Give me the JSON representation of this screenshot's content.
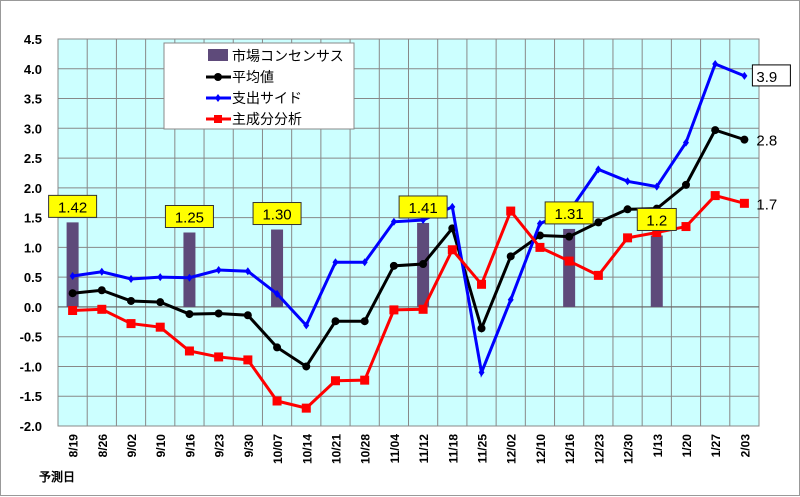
{
  "chart_data": {
    "type": "line",
    "xlabel": "予測日",
    "ylabel": "",
    "ylim": [
      -2.0,
      4.5
    ],
    "yticks": [
      "4.5",
      "4.0",
      "3.5",
      "3.0",
      "2.5",
      "2.0",
      "1.5",
      "1.0",
      "0.5",
      "0.0",
      "-0.5",
      "-1.0",
      "-1.5",
      "-2.0"
    ],
    "grid": true,
    "legend_position": "top-center",
    "categories": [
      "8/19",
      "8/26",
      "9/02",
      "9/10",
      "9/16",
      "9/23",
      "9/30",
      "10/07",
      "10/14",
      "10/21",
      "10/28",
      "11/04",
      "11/12",
      "11/18",
      "11/25",
      "12/02",
      "12/10",
      "12/16",
      "12/23",
      "12/30",
      "1/13",
      "1/20",
      "1/27",
      "2/03"
    ],
    "consensus": {
      "name": "市場コンセンサス",
      "color": "#5e4a7a",
      "points": [
        {
          "category": "8/19",
          "value": 1.42,
          "label": "1.42"
        },
        {
          "category": "9/16",
          "value": 1.25,
          "label": "1.25"
        },
        {
          "category": "10/07",
          "value": 1.3,
          "label": "1.30"
        },
        {
          "category": "11/12",
          "value": 1.41,
          "label": "1.41"
        },
        {
          "category": "12/16",
          "value": 1.31,
          "label": "1.31"
        },
        {
          "category": "1/13",
          "value": 1.2,
          "label": "1.2"
        }
      ]
    },
    "series": [
      {
        "name": "平均値",
        "color": "#000000",
        "marker": "circle",
        "end_label": "2.8",
        "values": [
          0.23,
          0.28,
          0.1,
          0.08,
          -0.12,
          -0.11,
          -0.14,
          -0.68,
          -1.0,
          -0.24,
          -0.24,
          0.69,
          0.72,
          1.32,
          -0.36,
          0.85,
          1.2,
          1.18,
          1.42,
          1.64,
          1.65,
          2.05,
          2.97,
          2.81
        ]
      },
      {
        "name": "支出サイド",
        "color": "#0000ff",
        "marker": "diamond",
        "end_label": "3.9",
        "values": [
          0.52,
          0.59,
          0.47,
          0.5,
          0.49,
          0.62,
          0.6,
          0.22,
          -0.31,
          0.75,
          0.75,
          1.43,
          1.46,
          1.68,
          -1.1,
          0.12,
          1.4,
          1.6,
          2.31,
          2.11,
          2.02,
          2.76,
          4.08,
          3.88
        ]
      },
      {
        "name": "主成分分析",
        "color": "#ff0000",
        "marker": "square",
        "end_label": "1.7",
        "values": [
          -0.06,
          -0.04,
          -0.28,
          -0.34,
          -0.74,
          -0.84,
          -0.89,
          -1.58,
          -1.7,
          -1.24,
          -1.23,
          -0.05,
          -0.04,
          0.96,
          0.38,
          1.61,
          1.0,
          0.77,
          0.53,
          1.16,
          1.25,
          1.35,
          1.87,
          1.74
        ]
      }
    ]
  }
}
